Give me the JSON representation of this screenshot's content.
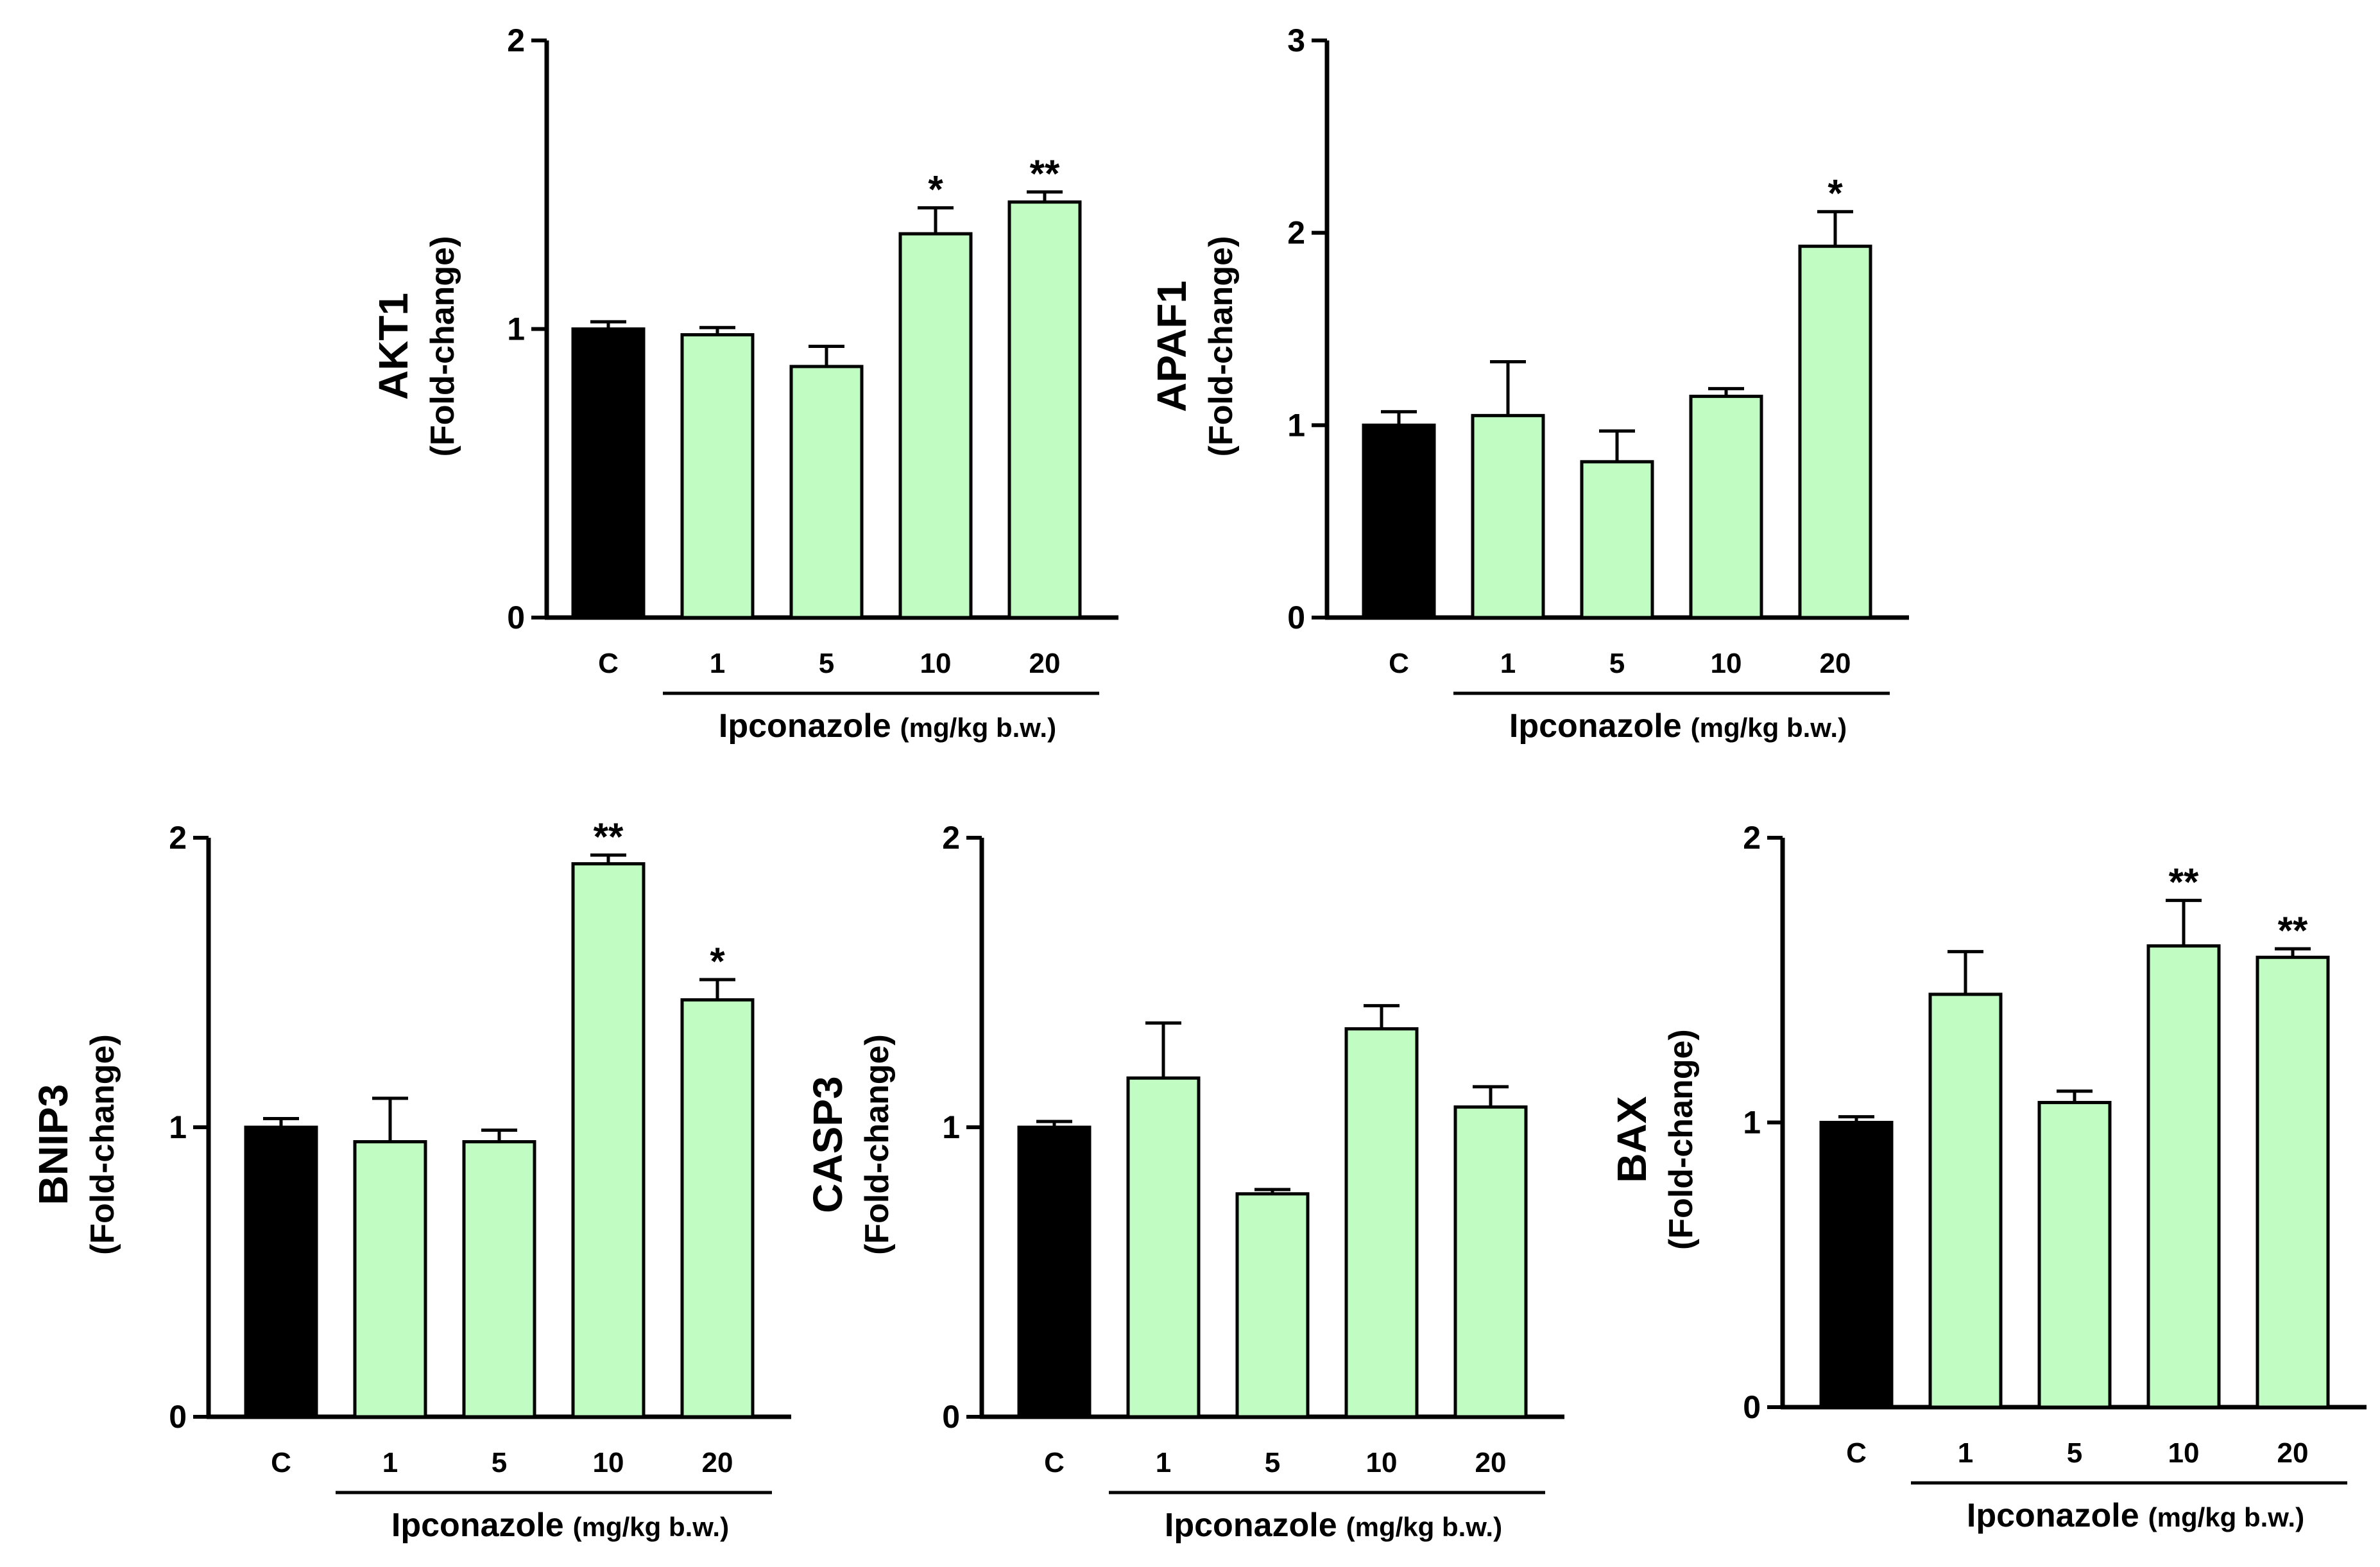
{
  "colors": {
    "control_fill": "#000000",
    "treatment_fill": "#c1fdc2",
    "bar_outline": "#000000",
    "axis": "#000000"
  },
  "chart_data": [
    {
      "type": "bar",
      "gene": "AKT1",
      "ylabel_unit": "(Fold-change)",
      "categories": [
        "C",
        "1",
        "5",
        "10",
        "20"
      ],
      "group_label": "Ipconazole",
      "group_unit": "(mg/kg b.w.)",
      "values": [
        1.0,
        0.98,
        0.87,
        1.33,
        1.44
      ],
      "errors": [
        0.025,
        0.025,
        0.07,
        0.09,
        0.035
      ],
      "significance": [
        "",
        "",
        "",
        "*",
        "**"
      ],
      "ylim": [
        0,
        2
      ],
      "yticks": [
        "0",
        "1",
        "2"
      ]
    },
    {
      "type": "bar",
      "gene": "APAF1",
      "ylabel_unit": "(Fold-change)",
      "categories": [
        "C",
        "1",
        "5",
        "10",
        "20"
      ],
      "group_label": "Ipconazole",
      "group_unit": "(mg/kg b.w.)",
      "values": [
        1.0,
        1.05,
        0.81,
        1.15,
        1.93
      ],
      "errors": [
        0.07,
        0.28,
        0.16,
        0.04,
        0.18
      ],
      "significance": [
        "",
        "",
        "",
        "",
        "*"
      ],
      "ylim": [
        0,
        3
      ],
      "yticks": [
        "0",
        "1",
        "2",
        "3"
      ]
    },
    {
      "type": "bar",
      "gene": "BNIP3",
      "ylabel_unit": "(Fold-change)",
      "categories": [
        "C",
        "1",
        "5",
        "10",
        "20"
      ],
      "group_label": "Ipconazole",
      "group_unit": "(mg/kg b.w.)",
      "values": [
        1.0,
        0.95,
        0.95,
        1.91,
        1.44
      ],
      "errors": [
        0.03,
        0.15,
        0.04,
        0.03,
        0.07
      ],
      "significance": [
        "",
        "",
        "",
        "**",
        "*"
      ],
      "ylim": [
        0,
        2
      ],
      "yticks": [
        "0",
        "1",
        "2"
      ]
    },
    {
      "type": "bar",
      "gene": "CASP3",
      "ylabel_unit": "(Fold-change)",
      "categories": [
        "C",
        "1",
        "5",
        "10",
        "20"
      ],
      "group_label": "Ipconazole",
      "group_unit": "(mg/kg b.w.)",
      "values": [
        1.0,
        1.17,
        0.77,
        1.34,
        1.07
      ],
      "errors": [
        0.02,
        0.19,
        0.015,
        0.08,
        0.07
      ],
      "significance": [
        "",
        "",
        "",
        "",
        ""
      ],
      "ylim": [
        0,
        2
      ],
      "yticks": [
        "0",
        "1",
        "2"
      ]
    },
    {
      "type": "bar",
      "gene": "BAX",
      "ylabel_unit": "(Fold-change)",
      "categories": [
        "C",
        "1",
        "5",
        "10",
        "20"
      ],
      "group_label": "Ipconazole",
      "group_unit": "(mg/kg b.w.)",
      "values": [
        1.0,
        1.45,
        1.07,
        1.62,
        1.58
      ],
      "errors": [
        0.02,
        0.15,
        0.04,
        0.16,
        0.03
      ],
      "significance": [
        "",
        "",
        "",
        "**",
        "**"
      ],
      "ylim": [
        0,
        2
      ],
      "yticks": [
        "0",
        "1",
        "2"
      ]
    }
  ]
}
